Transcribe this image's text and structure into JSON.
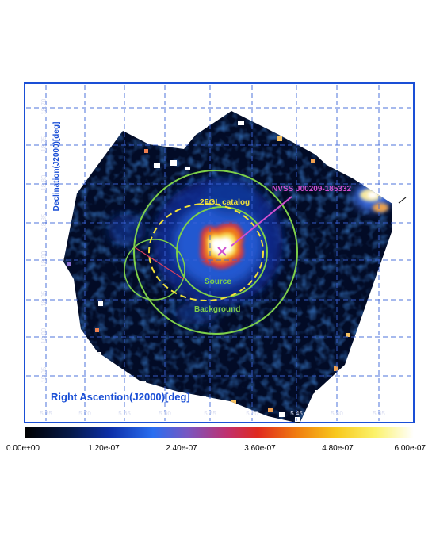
{
  "axes": {
    "xlabel": "Right Ascention(J2000)[deg]",
    "ylabel": "Declination(J2000)[deg]",
    "ra_ticks": [
      "5.75",
      "5.70",
      "5.65",
      "5.60",
      "5.55",
      "5.50",
      "5.45",
      "5.40",
      "5.35"
    ],
    "dec_ticks": [
      "-18.70",
      "-18.75",
      "-18.80",
      "-18.85",
      "-18.90",
      "-18.95",
      "-19.00",
      "-19.05"
    ]
  },
  "annotations": {
    "target": "NVSS J00209-185332",
    "catalog": "2FGL catalog",
    "source": "Source",
    "background": "Background"
  },
  "colorbar": {
    "labels": [
      "0.00e+00",
      "1.20e-07",
      "2.40e-07",
      "3.60e-07",
      "4.80e-07",
      "6.00e-07"
    ],
    "min": 0,
    "max": 6e-07
  },
  "colors": {
    "frame": "#1a4fd6",
    "grid": "#3b64d8",
    "circles": "#7ed04a",
    "catalog_ellipse": "#f2e23a",
    "target_marker": "#d050d0"
  }
}
